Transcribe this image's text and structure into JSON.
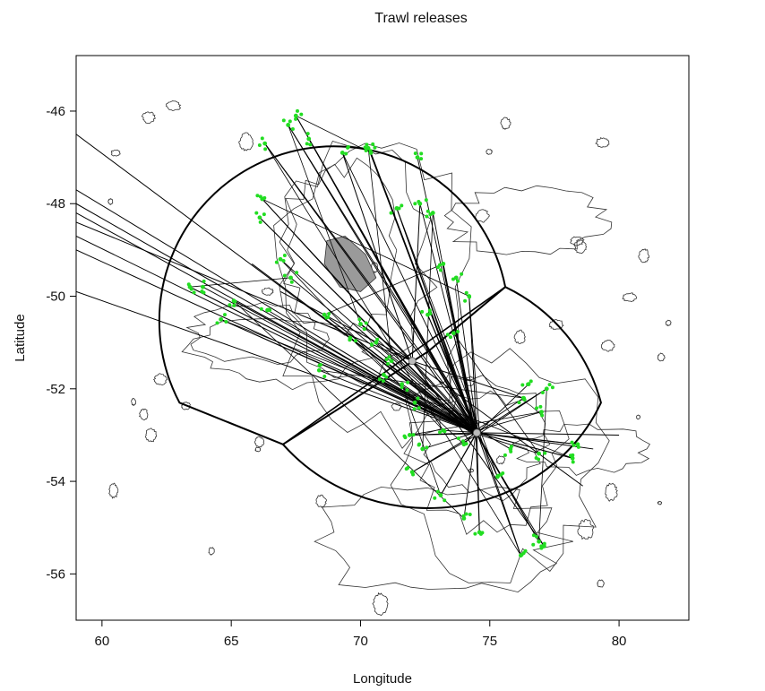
{
  "chart_data": {
    "type": "map",
    "title": "Trawl releases",
    "xlabel": "Longitude",
    "ylabel": "Latitude",
    "xlim": [
      59,
      82.7
    ],
    "ylim": [
      -57,
      -44.8
    ],
    "xticks": [
      60,
      65,
      70,
      75,
      80
    ],
    "yticks": [
      -56,
      -54,
      -52,
      -50,
      -48,
      -46
    ],
    "colors": {
      "lines": "#000000",
      "points": "#22dd22",
      "contours": "#333333",
      "shoal": "#9a9a9a"
    },
    "hub_points": [
      {
        "name": "heard-island-hub",
        "lon": 74.5,
        "lat": -52.95
      },
      {
        "name": "mid-ridge-hub",
        "lon": 72.0,
        "lat": -51.4
      }
    ],
    "release_sites": [
      [
        67.5,
        -46.1
      ],
      [
        68.0,
        -46.6
      ],
      [
        67.2,
        -46.3
      ],
      [
        66.3,
        -46.7
      ],
      [
        69.3,
        -46.9
      ],
      [
        70.4,
        -46.9
      ],
      [
        66.2,
        -47.9
      ],
      [
        66.1,
        -48.3
      ],
      [
        66.9,
        -49.2
      ],
      [
        67.3,
        -49.6
      ],
      [
        66.4,
        -50.3
      ],
      [
        65.1,
        -50.1
      ],
      [
        64.6,
        -50.5
      ],
      [
        63.9,
        -49.8
      ],
      [
        63.4,
        -49.8
      ],
      [
        70.0,
        -50.6
      ],
      [
        70.6,
        -51.0
      ],
      [
        71.2,
        -51.4
      ],
      [
        71.6,
        -51.9
      ],
      [
        72.1,
        -52.3
      ],
      [
        71.9,
        -53.0
      ],
      [
        72.4,
        -53.3
      ],
      [
        72.0,
        -53.8
      ],
      [
        73.1,
        -54.3
      ],
      [
        74.0,
        -54.8
      ],
      [
        74.6,
        -55.1
      ],
      [
        76.2,
        -55.6
      ],
      [
        76.9,
        -55.3
      ],
      [
        77.1,
        -55.4
      ],
      [
        75.3,
        -53.9
      ],
      [
        76.3,
        -52.2
      ],
      [
        76.5,
        -51.9
      ],
      [
        77.2,
        -52.0
      ],
      [
        77.0,
        -52.5
      ],
      [
        78.4,
        -53.2
      ],
      [
        78.2,
        -53.5
      ],
      [
        76.9,
        -53.4
      ],
      [
        75.8,
        -53.3
      ],
      [
        74.0,
        -53.2
      ],
      [
        73.2,
        -52.9
      ],
      [
        72.6,
        -50.4
      ],
      [
        73.6,
        -50.8
      ],
      [
        71.4,
        -48.1
      ],
      [
        72.3,
        -48.0
      ],
      [
        72.8,
        -48.2
      ],
      [
        73.2,
        -49.3
      ],
      [
        73.7,
        -49.6
      ],
      [
        74.2,
        -50.0
      ],
      [
        70.3,
        -46.8
      ],
      [
        72.2,
        -47.0
      ],
      [
        68.6,
        -50.4
      ],
      [
        69.6,
        -50.9
      ],
      [
        70.9,
        -51.7
      ],
      [
        68.4,
        -51.6
      ]
    ],
    "movement_endpoints": [
      [
        59.0,
        -46.5
      ],
      [
        59.0,
        -47.7
      ],
      [
        59.0,
        -48.0
      ],
      [
        59.0,
        -48.2
      ],
      [
        59.0,
        -48.4
      ],
      [
        59.0,
        -48.7
      ],
      [
        59.0,
        -49.0
      ],
      [
        59.0,
        -49.9
      ],
      [
        65.8,
        -49.3
      ],
      [
        66.9,
        -49.9
      ],
      [
        67.5,
        -46.1
      ],
      [
        68.0,
        -46.6
      ],
      [
        67.2,
        -46.3
      ],
      [
        66.3,
        -46.7
      ],
      [
        69.3,
        -46.9
      ],
      [
        70.4,
        -46.9
      ],
      [
        66.2,
        -47.9
      ],
      [
        66.1,
        -48.3
      ],
      [
        71.4,
        -48.1
      ],
      [
        72.3,
        -48.0
      ],
      [
        73.2,
        -49.3
      ],
      [
        74.2,
        -50.0
      ],
      [
        76.2,
        -55.6
      ],
      [
        76.9,
        -55.3
      ],
      [
        77.1,
        -55.4
      ],
      [
        74.6,
        -55.1
      ],
      [
        73.1,
        -54.3
      ],
      [
        72.0,
        -53.8
      ],
      [
        71.9,
        -53.0
      ],
      [
        76.3,
        -52.2
      ],
      [
        77.2,
        -52.0
      ],
      [
        78.4,
        -53.2
      ],
      [
        78.2,
        -53.5
      ],
      [
        79.0,
        -53.3
      ],
      [
        78.6,
        -54.1
      ],
      [
        80.0,
        -53.0
      ],
      [
        63.4,
        -49.8
      ],
      [
        64.6,
        -50.5
      ],
      [
        65.1,
        -50.1
      ],
      [
        70.0,
        -50.6
      ],
      [
        68.6,
        -50.4
      ],
      [
        72.6,
        -50.4
      ]
    ],
    "management_zones": [
      {
        "name": "north-zone-boundary",
        "arc_center": [
          70.55,
          -48.65
        ]
      },
      {
        "name": "south-zone-boundary",
        "arc_center": [
          74.2,
          -53.8
        ]
      }
    ]
  }
}
